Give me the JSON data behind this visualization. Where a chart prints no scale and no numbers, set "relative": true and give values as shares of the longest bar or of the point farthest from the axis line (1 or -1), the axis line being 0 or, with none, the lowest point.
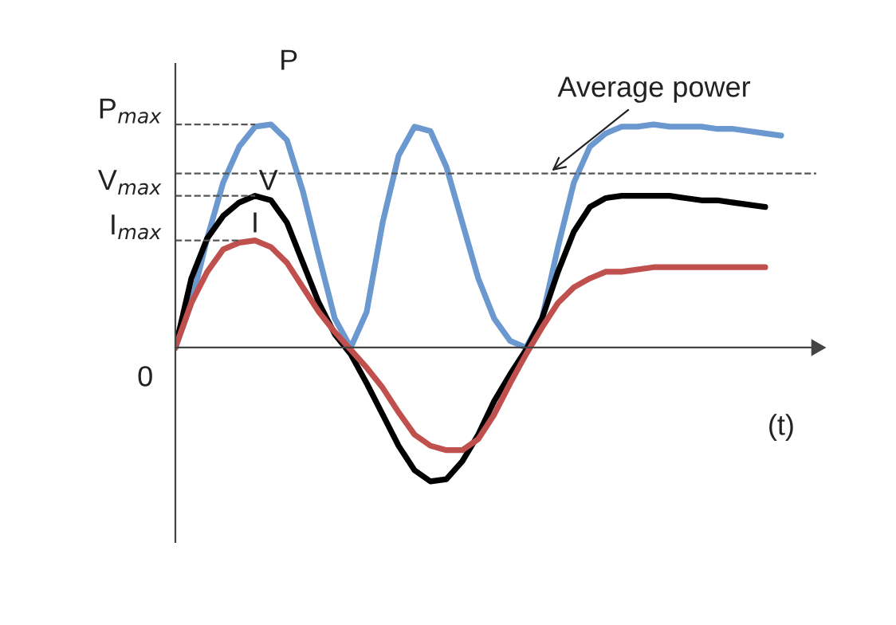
{
  "chart_data": {
    "type": "line",
    "relative": true,
    "categories": [
      null,
      null,
      null,
      null,
      null,
      null,
      null,
      null,
      null,
      null,
      null,
      null,
      null,
      null,
      null,
      null,
      null,
      null,
      null,
      null,
      null,
      null,
      null,
      null,
      null,
      null,
      null,
      null,
      null,
      null,
      null,
      null,
      null,
      null,
      null,
      null,
      null,
      null,
      null
    ],
    "series": [
      {
        "name": "P",
        "color": "#6a98cf",
        "values": [
          0,
          0.2,
          0.49,
          0.74,
          0.9,
          0.99,
          1.0,
          0.93,
          0.7,
          0.41,
          0.13,
          0,
          0.16,
          0.56,
          0.86,
          0.99,
          0.97,
          0.81,
          0.56,
          0.31,
          0.13,
          0.03,
          0,
          0.13,
          0.45,
          0.74,
          0.9,
          0.96,
          0.99,
          0.99,
          1.0,
          0.99,
          0.99,
          0.99,
          0.98,
          0.98,
          0.97,
          0.96,
          0.95
        ]
      },
      {
        "name": "V",
        "color": "#000000",
        "values": [
          0,
          0.31,
          0.49,
          0.59,
          0.65,
          0.68,
          0.66,
          0.56,
          0.38,
          0.2,
          0.06,
          -0.03,
          -0.16,
          -0.3,
          -0.44,
          -0.55,
          -0.6,
          -0.59,
          -0.51,
          -0.39,
          -0.24,
          -0.12,
          -0.01,
          0.13,
          0.34,
          0.52,
          0.63,
          0.67,
          0.68,
          0.68,
          0.68,
          0.68,
          0.67,
          0.66,
          0.66,
          0.65,
          0.64,
          0.63,
          null
        ]
      },
      {
        "name": "I",
        "color": "#c0504d",
        "values": [
          0,
          0.2,
          0.34,
          0.44,
          0.47,
          0.48,
          0.45,
          0.38,
          0.27,
          0.16,
          0.07,
          -0.01,
          -0.09,
          -0.18,
          -0.29,
          -0.39,
          -0.44,
          -0.46,
          -0.46,
          -0.41,
          -0.3,
          -0.16,
          -0.03,
          0.09,
          0.2,
          0.27,
          0.31,
          0.34,
          0.34,
          0.35,
          0.36,
          0.36,
          0.36,
          0.36,
          0.36,
          0.36,
          0.36,
          0.36,
          null
        ]
      }
    ],
    "ref_lines": [
      {
        "axis": "y",
        "value": 1.0,
        "label": "P$_{max}$",
        "line_style": "dashed"
      },
      {
        "axis": "y",
        "value": 0.68,
        "label": "V$_{max}$",
        "line_style": "dashed"
      },
      {
        "axis": "y",
        "value": 0.48,
        "label": "I$_{max}$",
        "line_style": "dashed"
      },
      {
        "axis": "y",
        "value": 0.78,
        "label": "Average power",
        "line_style": "dashed"
      }
    ],
    "annotations": [
      "0",
      "(t)"
    ],
    "legend": false,
    "line_style": "solid",
    "marker": "none"
  }
}
